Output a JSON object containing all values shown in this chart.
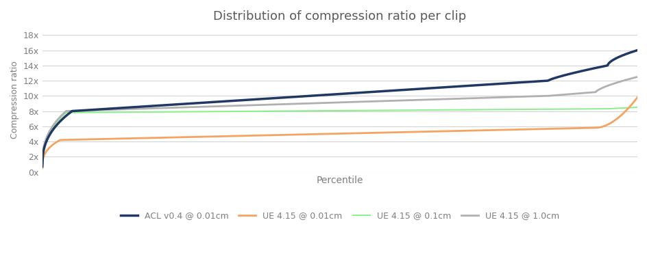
{
  "title": "Distribution of compression ratio per clip",
  "xlabel": "Percentile",
  "ylabel": "Compression ratio",
  "yticks": [
    0,
    2,
    4,
    6,
    8,
    10,
    12,
    14,
    16,
    18
  ],
  "ytick_labels": [
    "0x",
    "2x",
    "4x",
    "6x",
    "8x",
    "10x",
    "12x",
    "14x",
    "16x",
    "18x"
  ],
  "ylim": [
    0,
    19
  ],
  "xlim": [
    0,
    100
  ],
  "background_color": "#ffffff",
  "grid_color": "#d3d3d3",
  "title_color": "#595959",
  "axis_label_color": "#7f7f7f",
  "tick_label_color": "#7f7f7f",
  "series": [
    {
      "label": "ACL v0.4 @ 0.01cm",
      "color": "#1f3864",
      "linewidth": 2.5,
      "shape": "acl"
    },
    {
      "label": "UE 4.15 @ 0.01cm",
      "color": "#f4a460",
      "linewidth": 2.0,
      "shape": "ue001"
    },
    {
      "label": "UE 4.15 @ 0.1cm",
      "color": "#90ee90",
      "linewidth": 1.5,
      "shape": "ue01"
    },
    {
      "label": "UE 4.15 @ 1.0cm",
      "color": "#b0b0b0",
      "linewidth": 2.0,
      "shape": "ue1"
    }
  ]
}
